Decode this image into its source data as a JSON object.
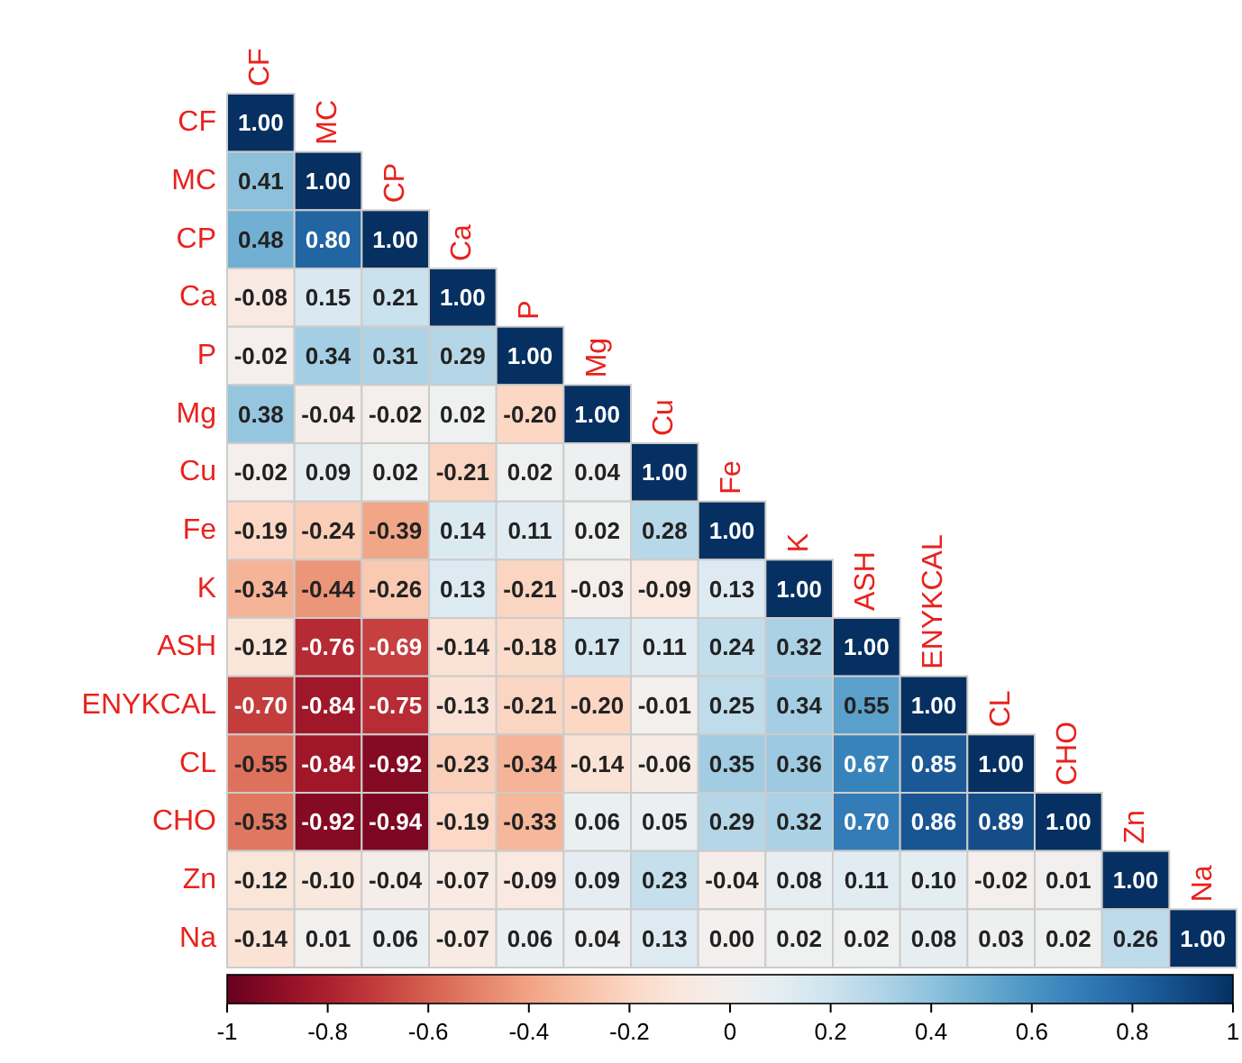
{
  "chart_data": {
    "type": "heatmap",
    "categories": [
      "CF",
      "MC",
      "CP",
      "Ca",
      "P",
      "Mg",
      "Cu",
      "Fe",
      "K",
      "ASH",
      "ENYKCAL",
      "CL",
      "CHO",
      "Zn",
      "Na"
    ],
    "y_categories": [
      "CF",
      "MC",
      "CP",
      "Ca",
      "P",
      "Mg",
      "Cu",
      "Fe",
      "K",
      "ASH",
      "ENYKCAL",
      "CL",
      "CHO",
      "Zn",
      "Na"
    ],
    "cells": [
      [
        1.0,
        null,
        null,
        null,
        null,
        null,
        null,
        null,
        null,
        null,
        null,
        null,
        null,
        null,
        null
      ],
      [
        0.41,
        1.0,
        null,
        null,
        null,
        null,
        null,
        null,
        null,
        null,
        null,
        null,
        null,
        null,
        null
      ],
      [
        0.48,
        0.8,
        1.0,
        null,
        null,
        null,
        null,
        null,
        null,
        null,
        null,
        null,
        null,
        null,
        null
      ],
      [
        -0.08,
        0.15,
        0.21,
        1.0,
        null,
        null,
        null,
        null,
        null,
        null,
        null,
        null,
        null,
        null,
        null
      ],
      [
        -0.02,
        0.34,
        0.31,
        0.29,
        1.0,
        null,
        null,
        null,
        null,
        null,
        null,
        null,
        null,
        null,
        null
      ],
      [
        0.38,
        -0.04,
        -0.02,
        0.02,
        -0.2,
        1.0,
        null,
        null,
        null,
        null,
        null,
        null,
        null,
        null,
        null
      ],
      [
        -0.02,
        0.09,
        0.02,
        -0.21,
        0.02,
        0.04,
        1.0,
        null,
        null,
        null,
        null,
        null,
        null,
        null,
        null
      ],
      [
        -0.19,
        -0.24,
        -0.39,
        0.14,
        0.11,
        0.02,
        0.28,
        1.0,
        null,
        null,
        null,
        null,
        null,
        null,
        null
      ],
      [
        -0.34,
        -0.44,
        -0.26,
        0.13,
        -0.21,
        -0.03,
        -0.09,
        0.13,
        1.0,
        null,
        null,
        null,
        null,
        null,
        null
      ],
      [
        -0.12,
        -0.76,
        -0.69,
        -0.14,
        -0.18,
        0.17,
        0.11,
        0.24,
        0.32,
        1.0,
        null,
        null,
        null,
        null,
        null
      ],
      [
        -0.7,
        -0.84,
        -0.75,
        -0.13,
        -0.21,
        -0.2,
        -0.01,
        0.25,
        0.34,
        0.55,
        1.0,
        null,
        null,
        null,
        null
      ],
      [
        -0.55,
        -0.84,
        -0.92,
        -0.23,
        -0.34,
        -0.14,
        -0.06,
        0.35,
        0.36,
        0.67,
        0.85,
        1.0,
        null,
        null,
        null
      ],
      [
        -0.53,
        -0.92,
        -0.94,
        -0.19,
        -0.33,
        0.06,
        0.05,
        0.29,
        0.32,
        0.7,
        0.86,
        0.89,
        1.0,
        null,
        null
      ],
      [
        -0.12,
        -0.1,
        -0.04,
        -0.07,
        -0.09,
        0.09,
        0.23,
        -0.04,
        0.08,
        0.11,
        0.1,
        -0.02,
        0.01,
        1.0,
        null
      ],
      [
        -0.14,
        0.01,
        0.06,
        -0.07,
        0.06,
        0.04,
        0.13,
        0.0,
        0.02,
        0.02,
        0.08,
        0.03,
        0.02,
        0.26,
        1.0
      ]
    ],
    "cell_labels": [
      [
        "1.00",
        null,
        null,
        null,
        null,
        null,
        null,
        null,
        null,
        null,
        null,
        null,
        null,
        null,
        null
      ],
      [
        "0.41",
        "1.00",
        null,
        null,
        null,
        null,
        null,
        null,
        null,
        null,
        null,
        null,
        null,
        null,
        null
      ],
      [
        "0.48",
        "0.80",
        "1.00",
        null,
        null,
        null,
        null,
        null,
        null,
        null,
        null,
        null,
        null,
        null,
        null
      ],
      [
        "-0.08",
        "0.15",
        "0.21",
        "1.00",
        null,
        null,
        null,
        null,
        null,
        null,
        null,
        null,
        null,
        null,
        null
      ],
      [
        "-0.02",
        "0.34",
        "0.31",
        "0.29",
        "1.00",
        null,
        null,
        null,
        null,
        null,
        null,
        null,
        null,
        null,
        null
      ],
      [
        "0.38",
        "-0.04",
        "-0.02",
        "0.02",
        "-0.20",
        "1.00",
        null,
        null,
        null,
        null,
        null,
        null,
        null,
        null,
        null
      ],
      [
        "-0.02",
        "0.09",
        "0.02",
        "-0.21",
        "0.02",
        "0.04",
        "1.00",
        null,
        null,
        null,
        null,
        null,
        null,
        null,
        null
      ],
      [
        "-0.19",
        "-0.24",
        "-0.39",
        "0.14",
        "0.11",
        "0.02",
        "0.28",
        "1.00",
        null,
        null,
        null,
        null,
        null,
        null,
        null
      ],
      [
        "-0.34",
        "-0.44",
        "-0.26",
        "0.13",
        "-0.21",
        "-0.03",
        "-0.09",
        "0.13",
        "1.00",
        null,
        null,
        null,
        null,
        null,
        null
      ],
      [
        "-0.12",
        "-0.76",
        "-0.69",
        "-0.14",
        "-0.18",
        "0.17",
        "0.11",
        "0.24",
        "0.32",
        "1.00",
        null,
        null,
        null,
        null,
        null
      ],
      [
        "-0.70",
        "-0.84",
        "-0.75",
        "-0.13",
        "-0.21",
        "-0.20",
        "-0.01",
        "0.25",
        "0.34",
        "0.55",
        "1.00",
        null,
        null,
        null,
        null
      ],
      [
        "-0.55",
        "-0.84",
        "-0.92",
        "-0.23",
        "-0.34",
        "-0.14",
        "-0.06",
        "0.35",
        "0.36",
        "0.67",
        "0.85",
        "1.00",
        null,
        null,
        null
      ],
      [
        "-0.53",
        "-0.92",
        "-0.94",
        "-0.19",
        "-0.33",
        "0.06",
        "0.05",
        "0.29",
        "0.32",
        "0.70",
        "0.86",
        "0.89",
        "1.00",
        null,
        null
      ],
      [
        "-0.12",
        "-0.10",
        "-0.04",
        "-0.07",
        "-0.09",
        "0.09",
        "0.23",
        "-0.04",
        "0.08",
        "0.11",
        "0.10",
        "-0.02",
        "0.01",
        "1.00",
        null
      ],
      [
        "-0.14",
        "0.01",
        "0.06",
        "-0.07",
        "0.06",
        "0.04",
        "0.13",
        "0.00",
        "0.02",
        "0.02",
        "0.08",
        "0.03",
        "0.02",
        "0.26",
        "1.00"
      ]
    ],
    "clim": [
      -1,
      1
    ],
    "cticks": [
      -1,
      -0.8,
      -0.6,
      -0.4,
      -0.2,
      0,
      0.2,
      0.4,
      0.6,
      0.8,
      1
    ]
  }
}
